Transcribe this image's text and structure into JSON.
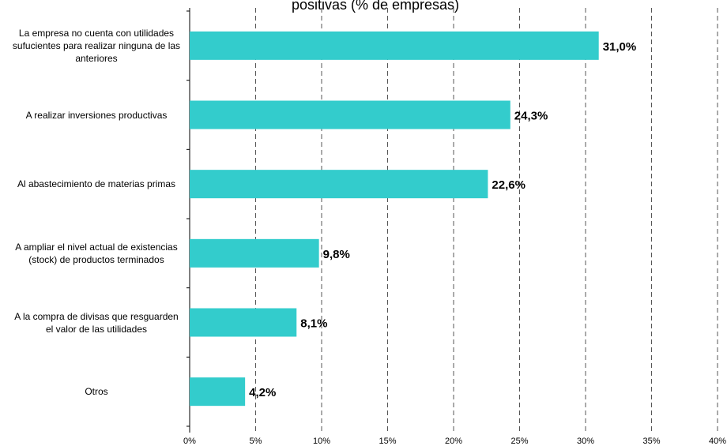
{
  "chart_data": {
    "type": "bar",
    "orientation": "horizontal",
    "title": "positivas (% de empresas)",
    "categories": [
      "La empresa no cuenta con utilidades sufucientes para realizar ninguna de las anteriores",
      "A realizar inversiones productivas",
      "Al abastecimiento de materias primas",
      "A ampliar el nivel actual de existencias (stock) de productos terminados",
      "A la compra de divisas que resguarden el valor de las utilidades",
      "Otros"
    ],
    "values": [
      31.0,
      24.3,
      22.6,
      9.8,
      8.1,
      4.2
    ],
    "value_labels": [
      "31,0%",
      "24,3%",
      "22,6%",
      "9,8%",
      "8,1%",
      "4,2%"
    ],
    "color": "#33CCCC",
    "xlim": [
      0,
      40
    ],
    "xticks": [
      {
        "value": 0,
        "label": "0%"
      },
      {
        "value": 5,
        "label": "5%"
      },
      {
        "value": 10,
        "label": "10%"
      },
      {
        "value": 15,
        "label": "15%"
      },
      {
        "value": 20,
        "label": "20%"
      },
      {
        "value": 25,
        "label": "25%"
      },
      {
        "value": 30,
        "label": "30%"
      },
      {
        "value": 35,
        "label": "35%"
      },
      {
        "value": 40,
        "label": "40%"
      }
    ],
    "grid": true
  }
}
